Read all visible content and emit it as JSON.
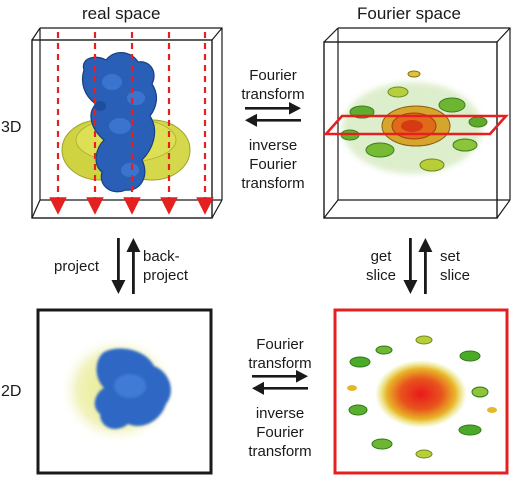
{
  "headers": {
    "real_space": "real space",
    "fourier_space": "Fourier space"
  },
  "rows": {
    "three_d": "3D",
    "two_d": "2D"
  },
  "top_arrows": {
    "forward": [
      "Fourier",
      "transform"
    ],
    "inverse": [
      "inverse",
      "Fourier",
      "transform"
    ]
  },
  "bottom_arrows": {
    "forward": [
      "Fourier",
      "transform"
    ],
    "inverse": [
      "inverse",
      "Fourier",
      "transform"
    ]
  },
  "left_arrows": {
    "down": "project",
    "up": [
      "back-",
      "project"
    ]
  },
  "right_arrows": {
    "down": [
      "get",
      "slice"
    ],
    "up": [
      "set",
      "slice"
    ]
  },
  "colors": {
    "slice_red": "#e52020",
    "density_blue": "#2a5fb8",
    "density_yellow": "#d9d84a",
    "fourier_green": "#4caa2a",
    "fourier_orange": "#e06a1a",
    "frame_black": "#1a1a1a"
  }
}
